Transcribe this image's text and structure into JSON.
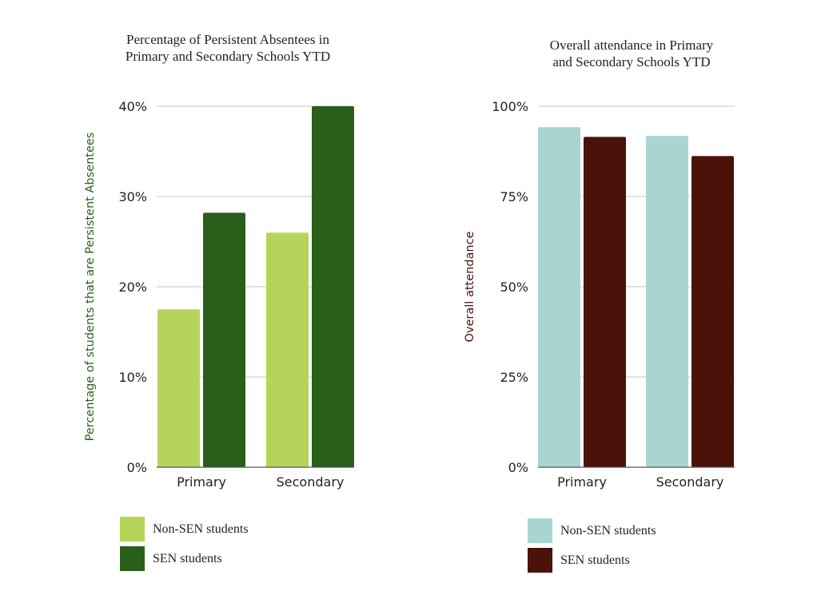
{
  "chart_data": [
    {
      "type": "bar",
      "title": "Percentage of Persistent Absentees in Primary and Secondary Schools YTD",
      "title_lines": [
        "Percentage of Persistent Absentees in",
        "Primary and Secondary Schools YTD"
      ],
      "xlabel": "",
      "ylabel": "Percentage of students that are Persistent Absentees",
      "ylabel_color": "#2a5e1b",
      "categories": [
        "Primary",
        "Secondary"
      ],
      "series": [
        {
          "name": "Non-SEN students",
          "color": "#b5d55a",
          "values": [
            17.5,
            26
          ]
        },
        {
          "name": "SEN students",
          "color": "#295e1b",
          "values": [
            28.2,
            40
          ]
        }
      ],
      "ylim": [
        0,
        40
      ],
      "yticks": [
        0,
        10,
        20,
        30,
        40
      ],
      "ytick_labels": [
        "0%",
        "10%",
        "20%",
        "30%",
        "40%"
      ],
      "grid": true,
      "legend_position": "bottom-left"
    },
    {
      "type": "bar",
      "title": "Overall attendance in Primary and Secondary Schools YTD",
      "title_lines": [
        "Overall attendance in Primary",
        "and Secondary Schools YTD"
      ],
      "xlabel": "",
      "ylabel": "Overall attendance",
      "ylabel_color": "#4a120a",
      "categories": [
        "Primary",
        "Secondary"
      ],
      "series": [
        {
          "name": "Non-SEN students",
          "color": "#a8d5d2",
          "values": [
            94.2,
            91.8
          ]
        },
        {
          "name": "SEN students",
          "color": "#4a1209",
          "values": [
            91.5,
            86.2
          ]
        }
      ],
      "ylim": [
        0,
        100
      ],
      "yticks": [
        0,
        25,
        50,
        75,
        100
      ],
      "ytick_labels": [
        "0%",
        "25%",
        "50%",
        "75%",
        "100%"
      ],
      "grid": true,
      "legend_position": "bottom-left"
    }
  ]
}
